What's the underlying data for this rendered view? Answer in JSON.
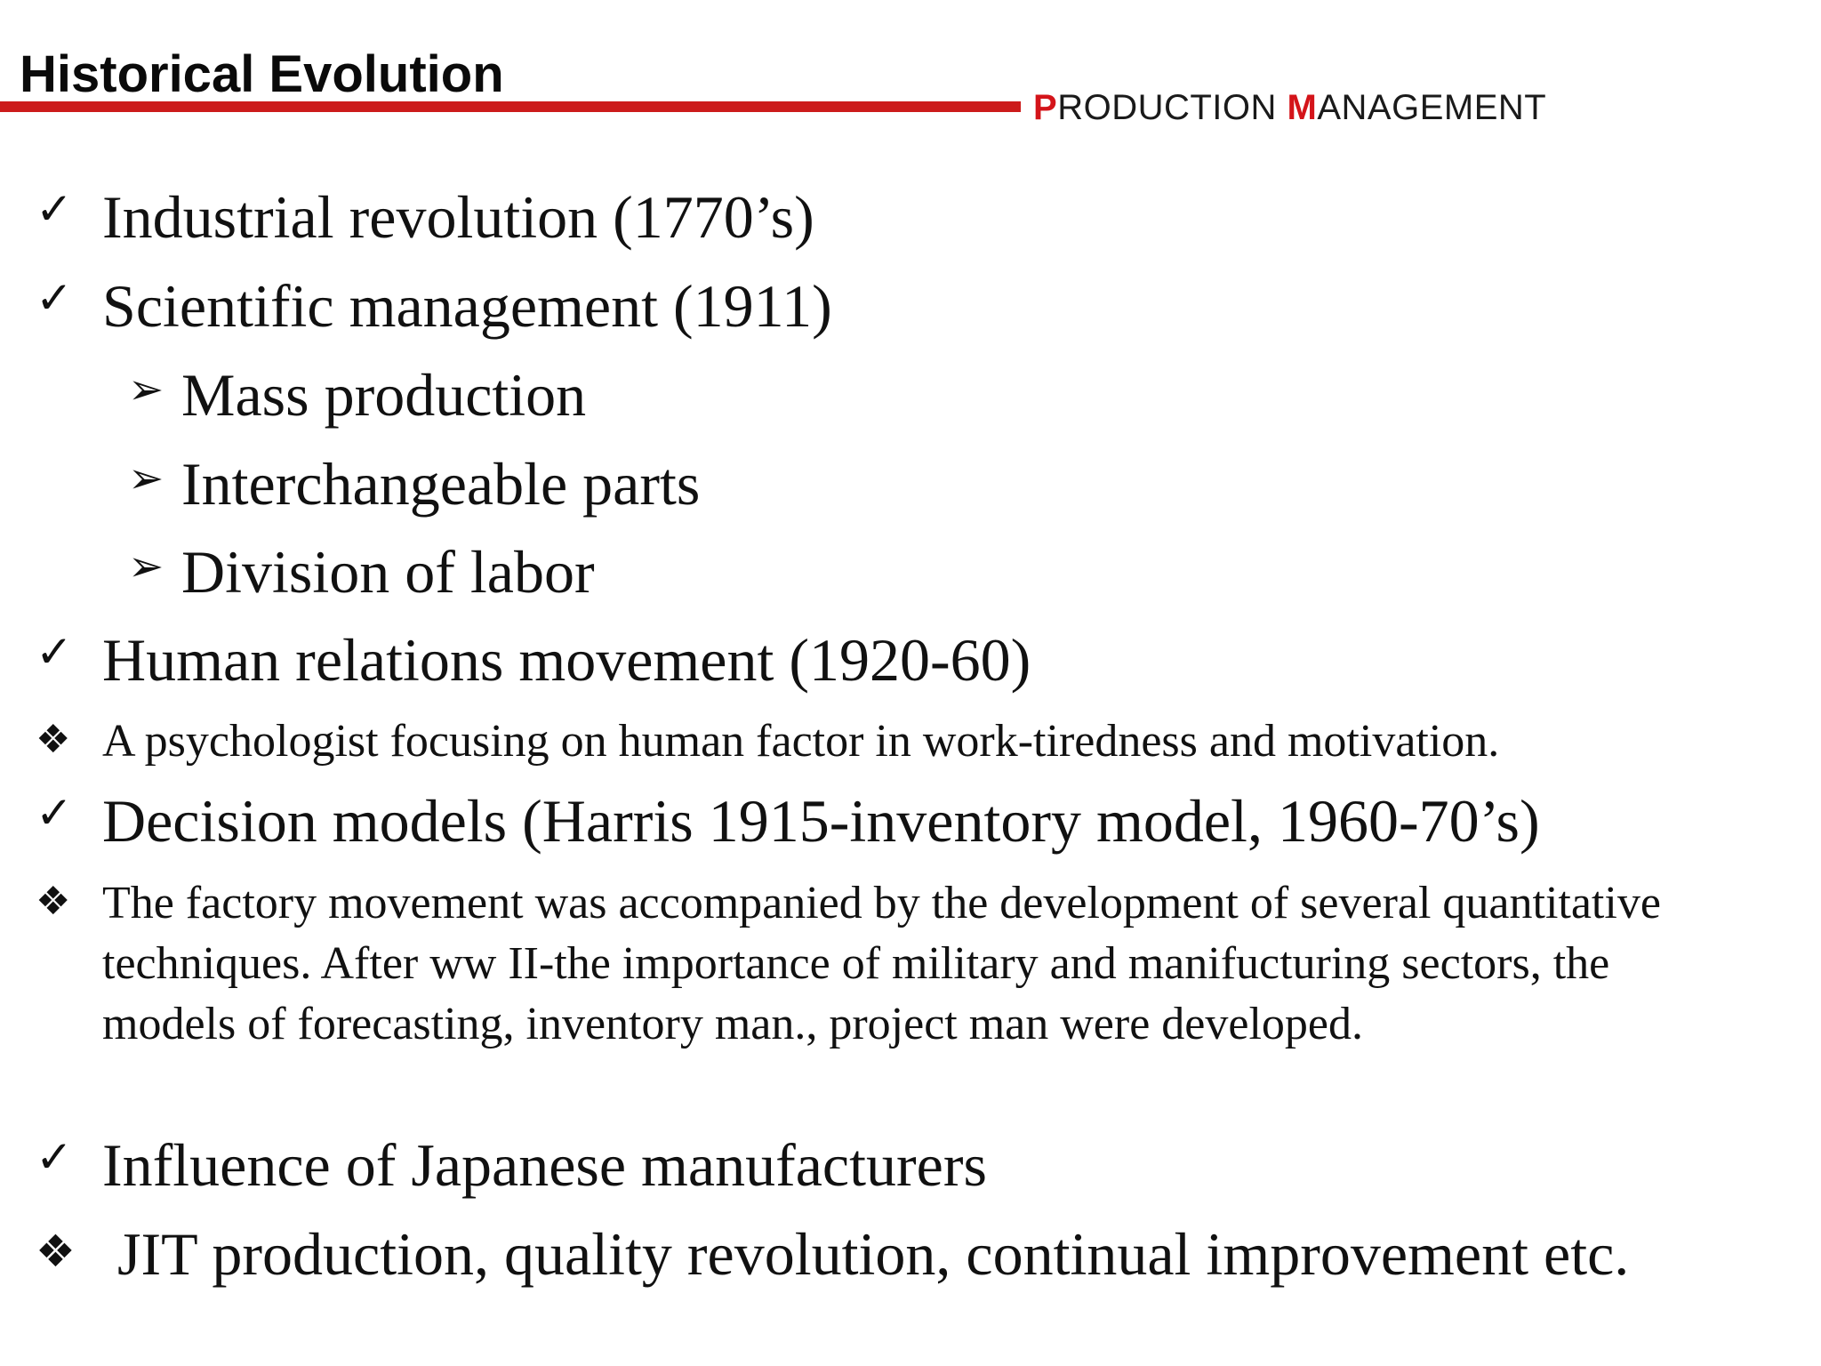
{
  "header": {
    "title": "Historical Evolution",
    "brand": {
      "p_initial": "P",
      "p_rest": "RODUCTION ",
      "m_initial": "M",
      "m_rest": "ANAGEMENT"
    }
  },
  "icons": {
    "check": "check-icon",
    "arrow": "arrow-bullet-icon",
    "diamond": "four-diamond-icon"
  },
  "colors": {
    "accent": "#cc1b1b",
    "brand_accent": "#d4141a",
    "text": "#111111"
  },
  "bullets": [
    {
      "glyph": "✓",
      "text": "Industrial revolution (1770’s)"
    },
    {
      "glyph": "✓",
      "text": "Scientific management (1911)"
    },
    {
      "glyph": "➢",
      "text": "Mass production"
    },
    {
      "glyph": "➢",
      "text": "Interchangeable parts"
    },
    {
      "glyph": "➢",
      "text": "Division of labor"
    },
    {
      "glyph": "✓",
      "text": "Human relations movement (1920-60)"
    },
    {
      "glyph": "❖",
      "text": "A psychologist focusing on human factor in work-tiredness and motivation."
    },
    {
      "glyph": "✓",
      "text": "Decision models (Harris 1915-inventory model, 1960-70’s)"
    },
    {
      "glyph": "❖",
      "text": "The factory movement was accompanied by the development of several quantitative techniques. After ww II-the importance of military  and manifucturing sectors, the models of forecasting, inventory man., project man were developed."
    },
    {
      "glyph": "✓",
      "text": "Influence of Japanese manufacturers"
    },
    {
      "glyph": "❖",
      "text": " JIT production, quality revolution, continual improvement etc."
    }
  ]
}
